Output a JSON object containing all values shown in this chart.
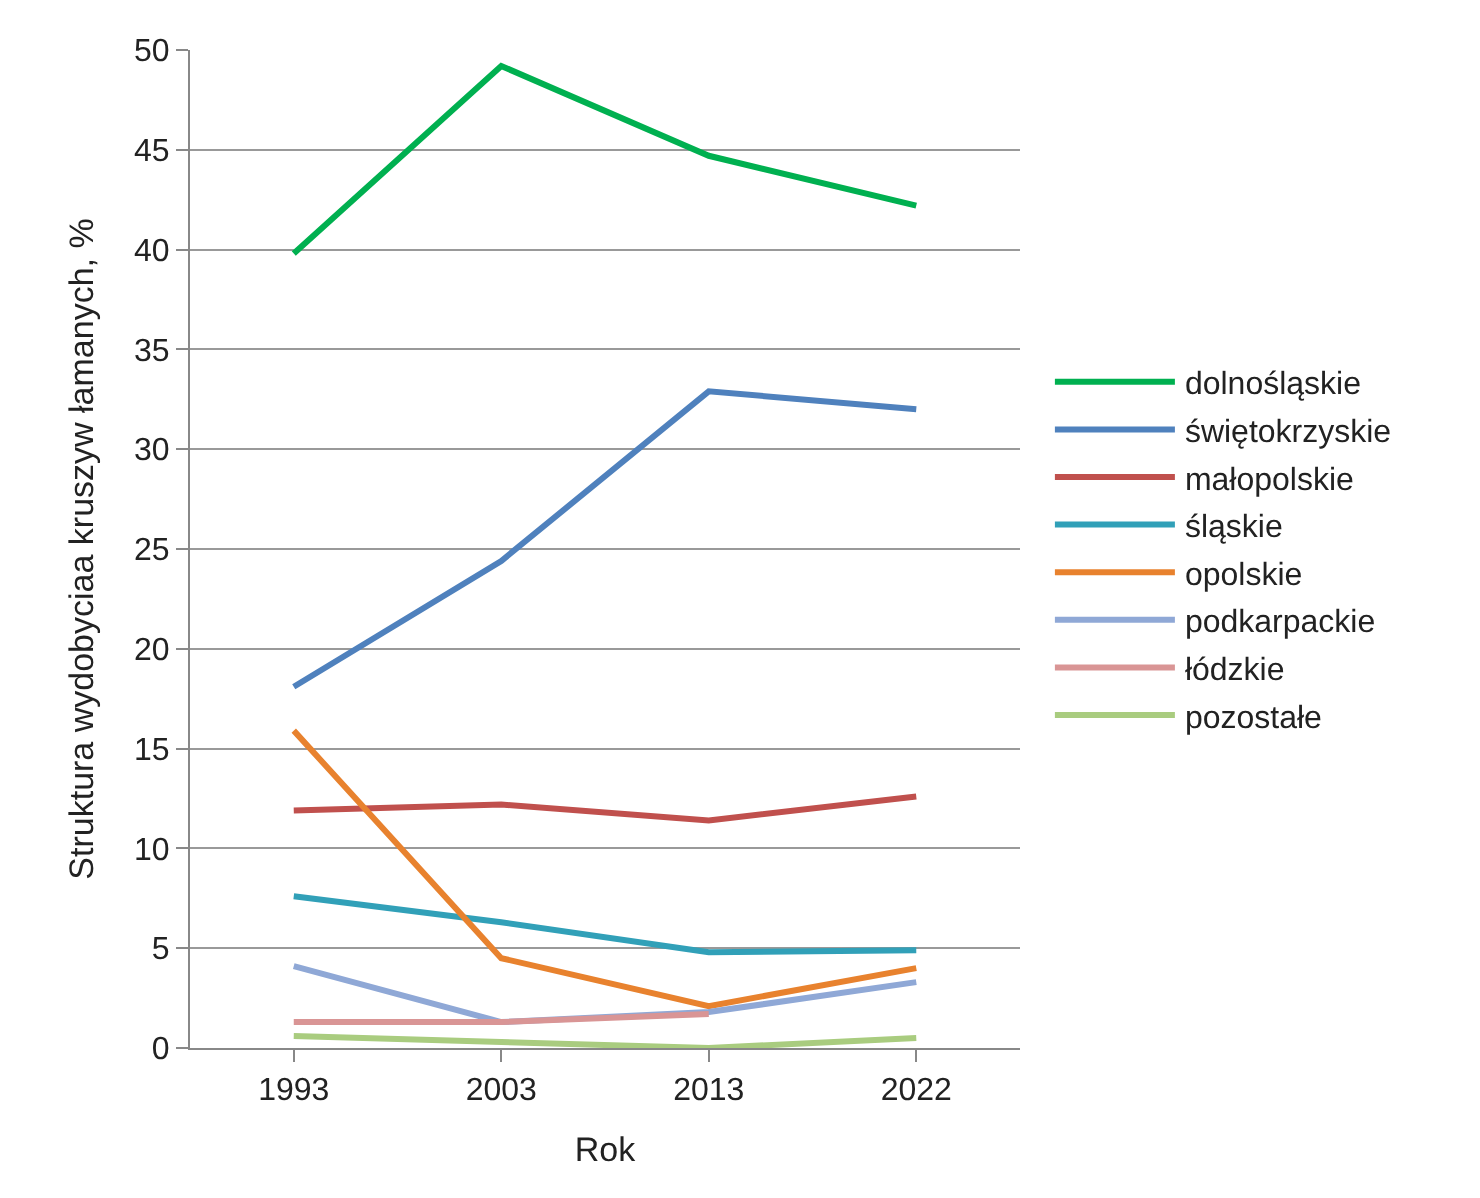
{
  "chart_data": {
    "type": "line",
    "xlabel": "Rok",
    "ylabel": "Struktura wydobyciaa kruszyw łamanych, %",
    "categories": [
      "1993",
      "2003",
      "2013",
      "2022"
    ],
    "ylim": [
      0,
      50
    ],
    "yticks": [
      0,
      5,
      10,
      15,
      20,
      25,
      30,
      35,
      40,
      45,
      50
    ],
    "grid": "y",
    "legend": "right",
    "marker": "none",
    "series": [
      {
        "name": "dolnośląskie",
        "color": "#00b050",
        "values": [
          39.8,
          49.2,
          44.7,
          42.2
        ]
      },
      {
        "name": "świętokrzyskie",
        "color": "#4f81bd",
        "values": [
          18.1,
          24.4,
          32.9,
          32.0
        ]
      },
      {
        "name": "małopolskie",
        "color": "#c0504d",
        "values": [
          11.9,
          12.2,
          11.4,
          12.6
        ]
      },
      {
        "name": "śląskie",
        "color": "#31a0b8",
        "values": [
          7.6,
          6.3,
          4.8,
          4.9
        ]
      },
      {
        "name": "opolskie",
        "color": "#e8822e",
        "values": [
          15.9,
          4.5,
          2.1,
          4.0
        ]
      },
      {
        "name": "podkarpackie",
        "color": "#8fa8d6",
        "values": [
          4.1,
          1.3,
          1.8,
          3.3
        ]
      },
      {
        "name": "łódzkie",
        "color": "#d99595",
        "values": [
          1.3,
          1.3,
          1.7,
          null
        ]
      },
      {
        "name": "pozostałe",
        "color": "#a9cc7f",
        "values": [
          0.6,
          0.3,
          0.0,
          0.5
        ]
      }
    ]
  }
}
